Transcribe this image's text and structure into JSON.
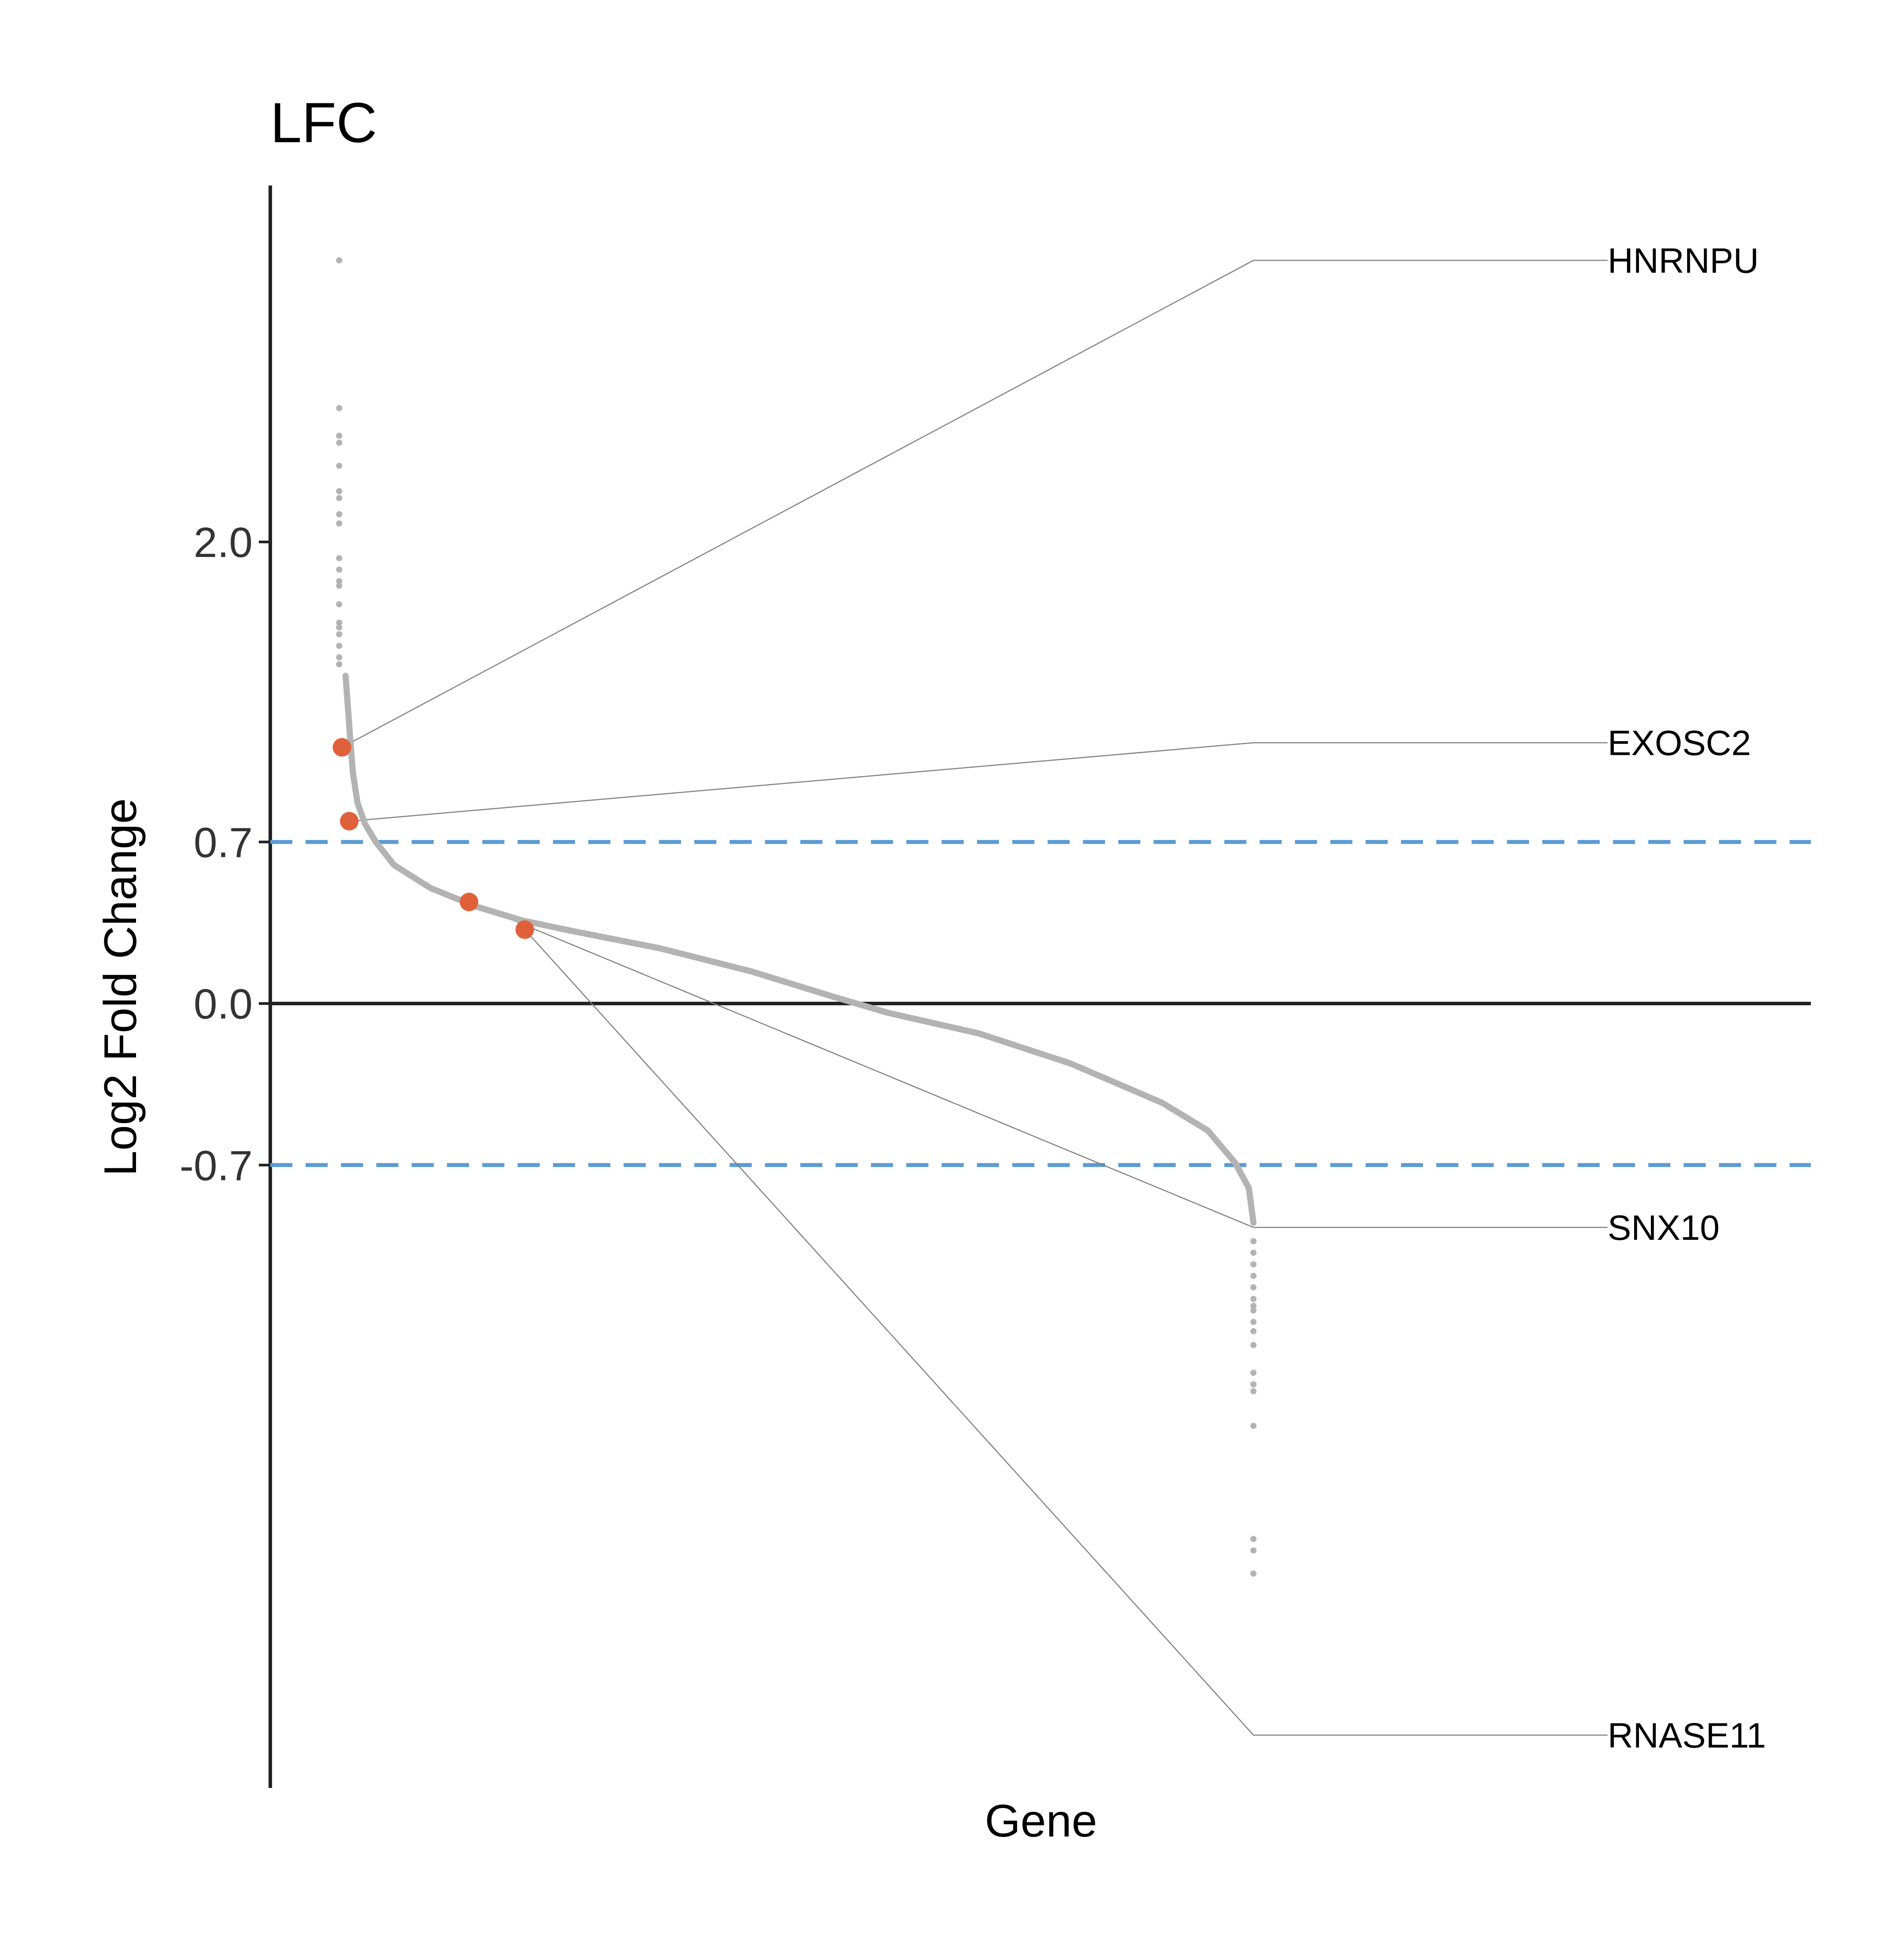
{
  "chart_data": {
    "type": "scatter",
    "title": "LFC",
    "xlabel": "Gene",
    "ylabel": "Log2 Fold Change",
    "yticks": [
      "2.0",
      "0.7",
      "0.0",
      "-0.7"
    ],
    "ytick_values": [
      2.0,
      0.7,
      0.0,
      -0.7
    ],
    "ylim": [
      -3.39,
      3.55
    ],
    "xlim": [
      0,
      1000
    ],
    "threshold_lines": [
      0.7,
      -0.7
    ],
    "grid": false,
    "legend": "none",
    "colors": {
      "curve": "#b3b3b3",
      "highlight": "#e0603a",
      "threshold": "#5b9bd5",
      "axis": "#222222",
      "connector": "#808080"
    },
    "curve": [
      [
        7,
        1.42
      ],
      [
        12,
        1.15
      ],
      [
        15,
        1.0
      ],
      [
        20,
        0.87
      ],
      [
        28,
        0.78
      ],
      [
        40,
        0.7
      ],
      [
        60,
        0.6
      ],
      [
        100,
        0.5
      ],
      [
        150,
        0.42
      ],
      [
        200,
        0.36
      ],
      [
        260,
        0.31
      ],
      [
        350,
        0.24
      ],
      [
        450,
        0.14
      ],
      [
        540,
        0.03
      ],
      [
        600,
        -0.04
      ],
      [
        700,
        -0.13
      ],
      [
        800,
        -0.26
      ],
      [
        900,
        -0.43
      ],
      [
        950,
        -0.55
      ],
      [
        980,
        -0.69
      ],
      [
        995,
        -0.8
      ],
      [
        1000,
        -0.95
      ]
    ],
    "outliers_high": [
      3.22,
      2.58,
      2.46,
      2.43,
      2.33,
      2.22,
      2.19,
      2.12,
      2.08,
      1.93,
      1.88,
      1.83,
      1.81,
      1.73,
      1.65,
      1.63,
      1.6,
      1.55,
      1.5,
      1.47
    ],
    "outliers_low": [
      -1.03,
      -1.08,
      -1.13,
      -1.18,
      -1.23,
      -1.28,
      -1.31,
      -1.33,
      -1.38,
      -1.42,
      -1.48,
      -1.6,
      -1.65,
      -1.68,
      -1.83,
      -2.32,
      -2.37,
      -2.47
    ],
    "highlighted": [
      {
        "gene": "HNRNPU",
        "x": 3,
        "y": 1.11,
        "label_y": 3.22,
        "elbow_x": 1000
      },
      {
        "gene": "EXOSC2",
        "x": 11,
        "y": 0.79,
        "label_y": 1.13,
        "elbow_x": 1000
      },
      {
        "gene": "SNX10",
        "x": 142,
        "y": 0.44,
        "label_y": -0.97,
        "elbow_x": 1000
      },
      {
        "gene": "RNASE11",
        "x": 203,
        "y": 0.32,
        "label_y": -3.17,
        "elbow_x": 1000
      }
    ]
  }
}
